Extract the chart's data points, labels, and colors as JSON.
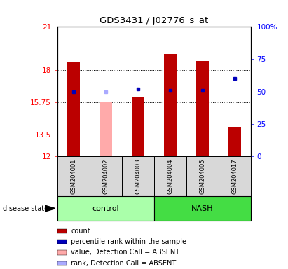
{
  "title": "GDS3431 / J02776_s_at",
  "samples": [
    "GSM204001",
    "GSM204002",
    "GSM204003",
    "GSM204004",
    "GSM204005",
    "GSM204017"
  ],
  "groups": [
    "control",
    "control",
    "control",
    "NASH",
    "NASH",
    "NASH"
  ],
  "ylim_left": [
    12,
    21
  ],
  "ylim_right": [
    0,
    100
  ],
  "yticks_left": [
    12,
    13.5,
    15.75,
    18,
    21
  ],
  "yticks_right": [
    0,
    25,
    50,
    75,
    100
  ],
  "bar_values": [
    18.6,
    null,
    16.1,
    19.1,
    18.65,
    14.0
  ],
  "bar_absent_values": [
    null,
    15.75,
    null,
    null,
    null,
    null
  ],
  "percentile_values": [
    50,
    null,
    52,
    51,
    51,
    60
  ],
  "percentile_absent_values": [
    null,
    50,
    null,
    null,
    null,
    null
  ],
  "bar_color": "#bb0000",
  "bar_absent_color": "#ffaaaa",
  "percentile_color": "#0000bb",
  "percentile_absent_color": "#aaaaff",
  "ctrl_color": "#aaffaa",
  "nash_color": "#44dd44",
  "sample_bg_color": "#d8d8d8",
  "legend_items": [
    {
      "label": "count",
      "color": "#bb0000"
    },
    {
      "label": "percentile rank within the sample",
      "color": "#0000bb"
    },
    {
      "label": "value, Detection Call = ABSENT",
      "color": "#ffaaaa"
    },
    {
      "label": "rank, Detection Call = ABSENT",
      "color": "#aaaaff"
    }
  ]
}
